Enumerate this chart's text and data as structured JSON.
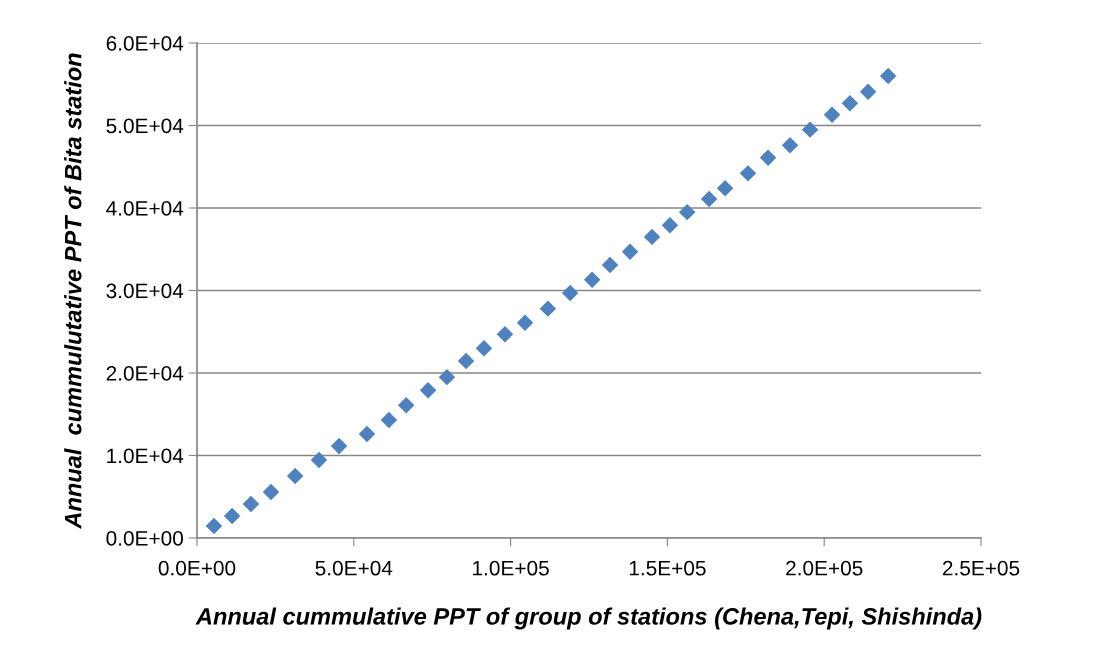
{
  "chart_data": {
    "type": "scatter",
    "xlabel": "Annual cummulative PPT of group of stations (Chena,Tepi, Shishinda)",
    "ylabel": "Annual  cummulutative PPT of Bita station",
    "x": [
      5400,
      11200,
      17200,
      23600,
      31300,
      38900,
      45300,
      54200,
      61200,
      66700,
      73700,
      79700,
      85800,
      91500,
      98200,
      104600,
      111900,
      119000,
      126000,
      131700,
      138100,
      145100,
      150800,
      156300,
      163300,
      168400,
      175700,
      182100,
      189100,
      195500,
      202500,
      208200,
      214000,
      220400
    ],
    "series": [
      {
        "color": "#4f81bd",
        "values": [
          1450,
          2670,
          4120,
          5580,
          7510,
          9450,
          11150,
          12600,
          14300,
          16100,
          17900,
          19500,
          21450,
          23000,
          24700,
          26100,
          27800,
          29700,
          31300,
          33100,
          34700,
          36500,
          37900,
          39500,
          41100,
          42400,
          44200,
          46100,
          47600,
          49500,
          51300,
          52700,
          54100,
          56000
        ]
      }
    ],
    "xlim": [
      0,
      250000
    ],
    "xticks": [
      {
        "value": 0,
        "label": "0.0E+00"
      },
      {
        "value": 50000,
        "label": "5.0E+04"
      },
      {
        "value": 100000,
        "label": "1.0E+05"
      },
      {
        "value": 150000,
        "label": "1.5E+05"
      },
      {
        "value": 200000,
        "label": "2.0E+05"
      },
      {
        "value": 250000,
        "label": "2.5E+05"
      }
    ],
    "ylim": [
      0,
      60000
    ],
    "yticks": [
      {
        "value": 0,
        "label": "0.0E+00"
      },
      {
        "value": 10000,
        "label": "1.0E+04"
      },
      {
        "value": 20000,
        "label": "2.0E+04"
      },
      {
        "value": 30000,
        "label": "3.0E+04"
      },
      {
        "value": 40000,
        "label": "4.0E+04"
      },
      {
        "value": 50000,
        "label": "5.0E+04"
      },
      {
        "value": 60000,
        "label": "6.0E+04"
      }
    ],
    "grid": "y",
    "marker": "diamond"
  }
}
